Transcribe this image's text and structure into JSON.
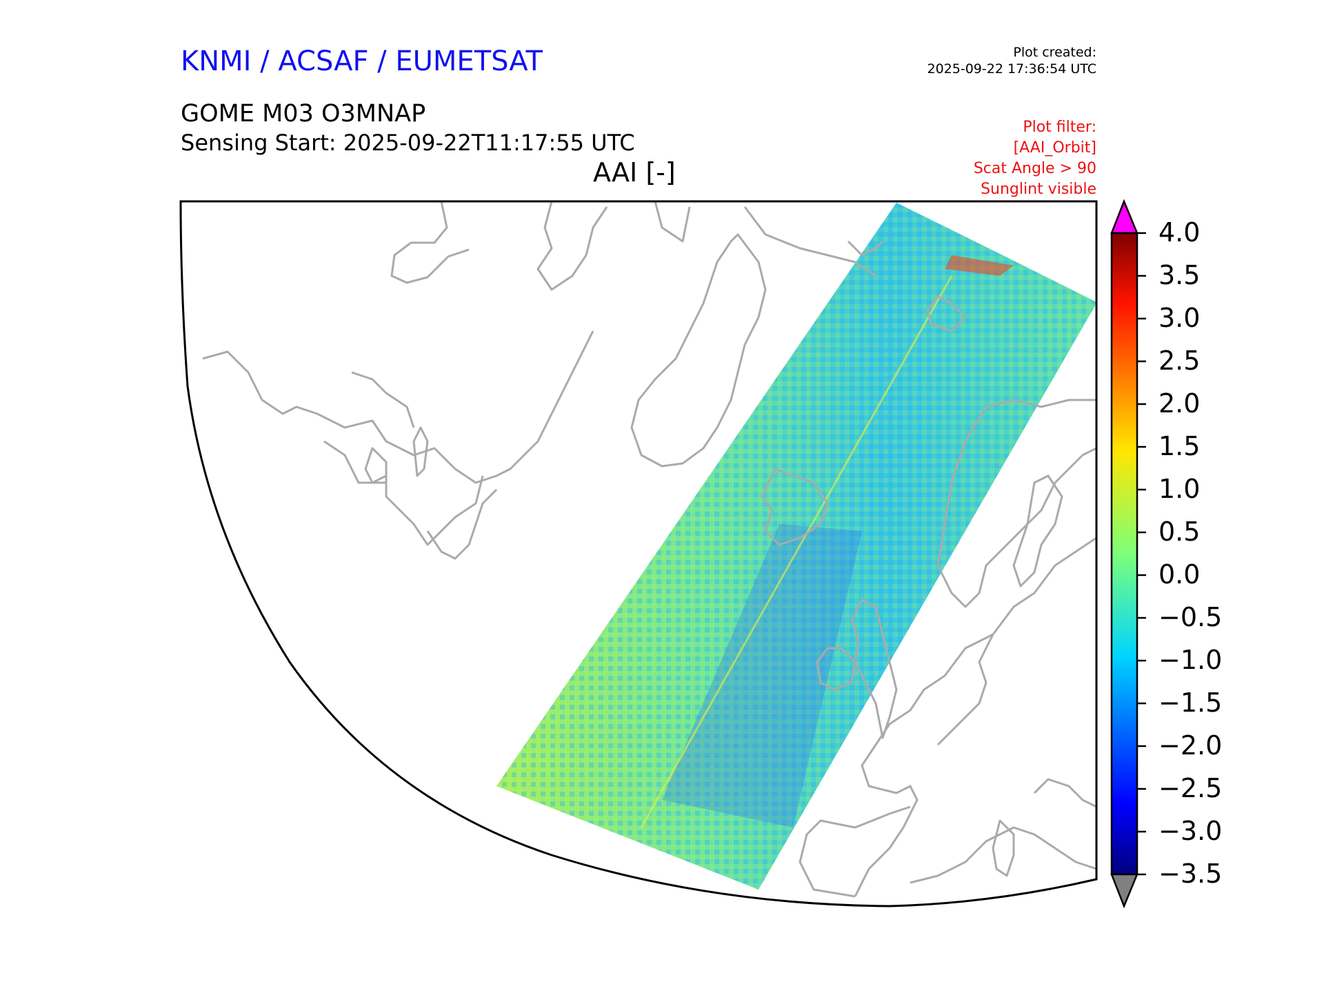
{
  "header": {
    "organization": "KNMI / ACSAF / EUMETSAT",
    "created_label": "Plot created:",
    "created_time": "2025-09-22 17:36:54 UTC",
    "product": "GOME M03 O3MNAP",
    "sensing_start": "Sensing Start: 2025-09-22T11:17:55 UTC",
    "plot_title": "AAI [-]"
  },
  "filter": {
    "label": "Plot filter:",
    "lines": [
      "[AAI_Orbit]",
      "Scat Angle > 90",
      "Sunglint visible"
    ]
  },
  "colorbar": {
    "ticks": [
      "4.0",
      "3.5",
      "3.0",
      "2.5",
      "2.0",
      "1.5",
      "1.0",
      "0.5",
      "0.0",
      "−0.5",
      "−1.0",
      "−1.5",
      "−2.0",
      "−2.5",
      "−3.0",
      "−3.5"
    ],
    "values": [
      4.0,
      3.5,
      3.0,
      2.5,
      2.0,
      1.5,
      1.0,
      0.5,
      0.0,
      -0.5,
      -1.0,
      -1.5,
      -2.0,
      -2.5,
      -3.0,
      -3.5
    ],
    "min": -3.5,
    "max": 4.0,
    "over_color": "#ff00ff",
    "under_color": "#808080"
  },
  "colors": {
    "coast": "#aaaaaa",
    "swath_base": "#66e6a0"
  }
}
